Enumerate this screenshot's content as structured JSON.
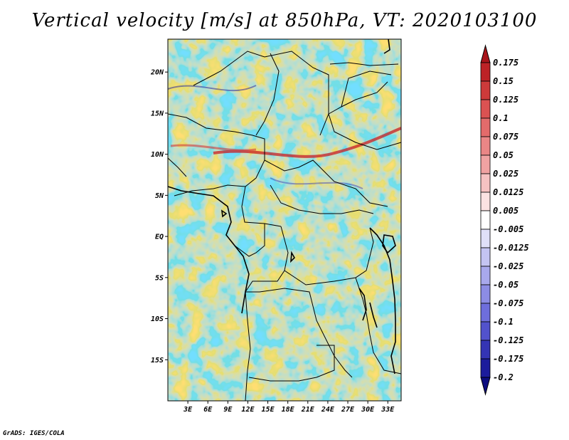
{
  "title": "Vertical velocity [m/s] at 850hPa, VT: 2020103100",
  "credit": "GrADS: IGES/COLA",
  "map": {
    "lon_range": [
      0,
      35
    ],
    "lat_range": [
      -20,
      24
    ],
    "lat_ticks": [
      "20N",
      "15N",
      "10N",
      "5N",
      "EQ",
      "5S",
      "10S",
      "15S"
    ],
    "lon_ticks": [
      "3E",
      "6E",
      "9E",
      "12E",
      "15E",
      "18E",
      "21E",
      "24E",
      "27E",
      "30E",
      "33E"
    ]
  },
  "colorbar": {
    "labels": [
      "0.175",
      "0.15",
      "0.125",
      "0.1",
      "0.075",
      "0.05",
      "0.025",
      "0.0125",
      "0.005",
      "-0.005",
      "-0.0125",
      "-0.025",
      "-0.05",
      "-0.075",
      "-0.1",
      "-0.125",
      "-0.175",
      "-0.2"
    ],
    "colors": [
      "#a8141a",
      "#bd2226",
      "#cd3a3a",
      "#db5252",
      "#e36b6b",
      "#ea8686",
      "#f0a2a2",
      "#f6c2c2",
      "#fbe2e2",
      "#ffffff",
      "#e0e0f8",
      "#c4c4f2",
      "#a8a8ec",
      "#8c8ce4",
      "#6e6edc",
      "#5252cc",
      "#3434b4",
      "#1c1c9c",
      "#0d0d80"
    ]
  },
  "legend": {
    "max_icon": "triangle-up-icon",
    "min_icon": "triangle-down-icon"
  }
}
